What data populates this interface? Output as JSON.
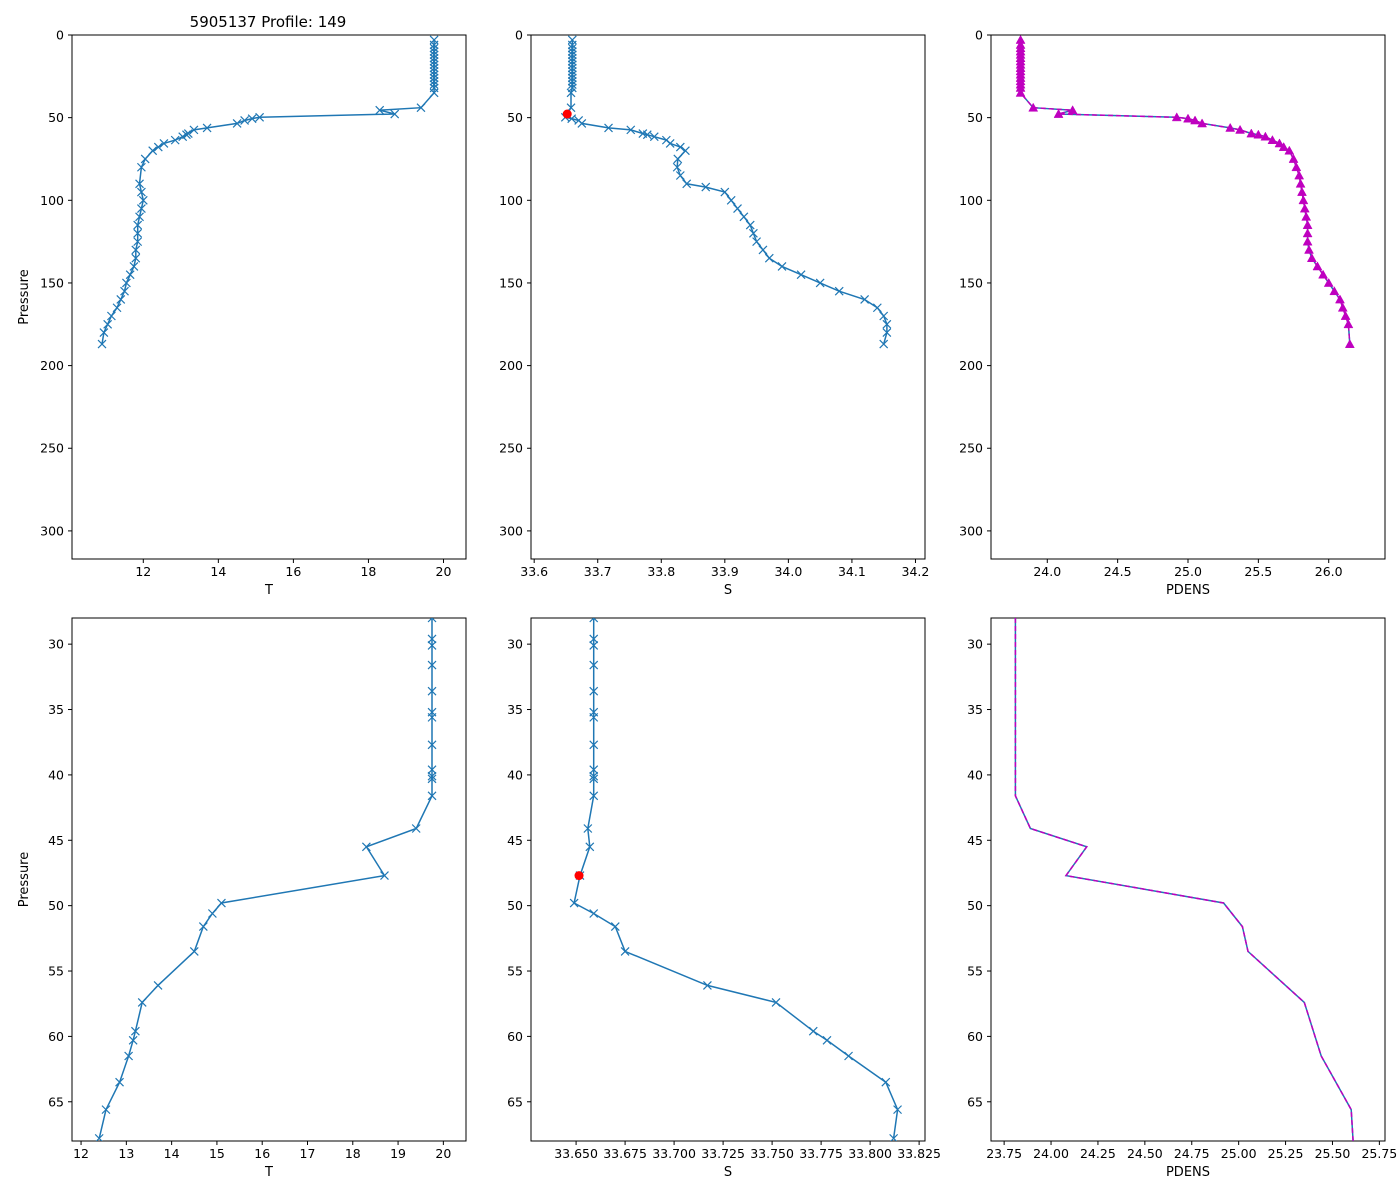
{
  "figure_title": "5905137 Profile: 149",
  "colors": {
    "series": "#1f77b4",
    "density": "#bf00bf",
    "marker_red": "#ff0000",
    "axes": "#000000"
  },
  "chart_data": [
    {
      "id": "top-T",
      "type": "line",
      "title": "5905137 Profile: 149",
      "xlabel": "T",
      "ylabel": "Pressure",
      "xlim": [
        10.1,
        20.6
      ],
      "ylim": [
        317,
        0
      ],
      "yinverted": true,
      "xticks": [
        12,
        14,
        16,
        18,
        20
      ],
      "yticks": [
        0,
        50,
        100,
        150,
        200,
        250,
        300
      ],
      "series": [
        {
          "name": "T",
          "marker": "x",
          "x": [
            19.75,
            19.75,
            19.75,
            19.75,
            19.75,
            19.75,
            19.75,
            19.75,
            19.75,
            19.75,
            19.75,
            19.75,
            19.75,
            19.75,
            19.75,
            19.75,
            19.4,
            18.3,
            18.7,
            15.1,
            14.9,
            14.7,
            14.5,
            13.7,
            13.35,
            13.2,
            13.15,
            13.05,
            12.85,
            12.55,
            12.4,
            12.25,
            12.05,
            11.95,
            11.9,
            11.95,
            12.0,
            11.95,
            11.9,
            11.85,
            11.85,
            11.85,
            11.8,
            11.8,
            11.75,
            11.65,
            11.55,
            11.5,
            11.4,
            11.3,
            11.15,
            11.05,
            10.95,
            10.9
          ],
          "y": [
            3,
            6,
            8,
            10,
            12,
            14,
            16,
            18,
            20,
            22,
            24,
            26,
            28,
            30,
            32,
            35,
            44,
            45.5,
            47.8,
            49.8,
            50.6,
            51.7,
            53.5,
            56.2,
            57.4,
            59.6,
            60.3,
            61.5,
            63.6,
            65.6,
            67.8,
            70,
            75,
            80,
            90,
            95,
            100,
            105,
            110,
            115,
            120,
            125,
            130,
            135,
            140,
            145,
            150,
            155,
            160,
            165,
            170,
            175,
            180,
            187
          ]
        }
      ]
    },
    {
      "id": "top-S",
      "type": "line",
      "xlabel": "S",
      "ylabel": "",
      "xlim": [
        33.595,
        34.215
      ],
      "ylim": [
        317,
        0
      ],
      "yinverted": true,
      "xticks": [
        33.6,
        33.7,
        33.8,
        33.9,
        34.0,
        34.1,
        34.2
      ],
      "yticks": [
        0,
        50,
        100,
        150,
        200,
        250,
        300
      ],
      "series": [
        {
          "name": "S",
          "marker": "x",
          "x": [
            33.66,
            33.66,
            33.66,
            33.66,
            33.66,
            33.66,
            33.66,
            33.66,
            33.66,
            33.66,
            33.66,
            33.66,
            33.66,
            33.66,
            33.66,
            33.658,
            33.658,
            33.649,
            33.659,
            33.67,
            33.675,
            33.717,
            33.752,
            33.771,
            33.778,
            33.789,
            33.808,
            33.814,
            33.83,
            33.838,
            33.826,
            33.825,
            33.83,
            33.84,
            33.87,
            33.9,
            33.91,
            33.92,
            33.93,
            33.94,
            33.945,
            33.95,
            33.96,
            33.97,
            33.99,
            34.02,
            34.05,
            34.08,
            34.12,
            34.14,
            34.15,
            34.155,
            34.155,
            34.15
          ],
          "y": [
            3,
            6,
            8,
            10,
            12,
            14,
            16,
            18,
            20,
            22,
            24,
            26,
            28,
            30,
            32,
            35,
            44,
            49.8,
            50.6,
            51.7,
            53.5,
            56.2,
            57.4,
            59.6,
            60.3,
            61.5,
            63.6,
            65.6,
            67.8,
            70,
            75,
            80,
            85,
            90,
            92,
            95,
            100,
            105,
            110,
            115,
            120,
            125,
            130,
            135,
            140,
            145,
            150,
            155,
            160,
            165,
            170,
            175,
            180,
            187
          ]
        }
      ],
      "highlight_point": {
        "x": 33.652,
        "y": 47.8,
        "color": "red"
      }
    },
    {
      "id": "top-PDENS",
      "type": "line",
      "xlabel": "PDENS",
      "ylabel": "",
      "xlim": [
        23.6,
        26.4
      ],
      "ylim": [
        317,
        0
      ],
      "yinverted": true,
      "xticks": [
        24.0,
        24.5,
        25.0,
        25.5,
        26.0
      ],
      "yticks": [
        0,
        50,
        100,
        150,
        200,
        250,
        300
      ],
      "series": [
        {
          "name": "PDENS",
          "marker": "triangle",
          "dashed_overlay": true,
          "x": [
            23.81,
            23.81,
            23.81,
            23.81,
            23.81,
            23.81,
            23.81,
            23.81,
            23.81,
            23.81,
            23.81,
            23.81,
            23.81,
            23.81,
            23.81,
            23.81,
            23.9,
            24.18,
            24.08,
            24.92,
            25.0,
            25.05,
            25.1,
            25.3,
            25.37,
            25.45,
            25.5,
            25.55,
            25.6,
            25.65,
            25.68,
            25.72,
            25.75,
            25.77,
            25.79,
            25.8,
            25.81,
            25.82,
            25.83,
            25.84,
            25.85,
            25.85,
            25.85,
            25.86,
            25.88,
            25.92,
            25.96,
            26.0,
            26.04,
            26.08,
            26.1,
            26.12,
            26.14,
            26.15
          ],
          "y": [
            3,
            6,
            8,
            10,
            12,
            14,
            16,
            18,
            20,
            22,
            24,
            26,
            28,
            30,
            32,
            35,
            44,
            45.5,
            47.8,
            49.8,
            50.6,
            51.7,
            53.5,
            56.2,
            57.4,
            59.6,
            60.3,
            61.5,
            63.6,
            65.6,
            67.8,
            70,
            75,
            80,
            85,
            90,
            95,
            100,
            105,
            110,
            115,
            120,
            125,
            130,
            135,
            140,
            145,
            150,
            155,
            160,
            165,
            170,
            175,
            187
          ]
        }
      ]
    },
    {
      "id": "bottom-T",
      "type": "line",
      "xlabel": "T",
      "ylabel": "Pressure",
      "xlim": [
        11.8,
        20.5
      ],
      "ylim": [
        68,
        28
      ],
      "yinverted": true,
      "xticks": [
        12,
        13,
        14,
        15,
        16,
        17,
        18,
        19,
        20
      ],
      "yticks": [
        30,
        35,
        40,
        45,
        50,
        55,
        60,
        65
      ],
      "series": [
        {
          "name": "T",
          "marker": "x",
          "x": [
            19.75,
            19.75,
            19.75,
            19.75,
            19.75,
            19.75,
            19.75,
            19.75,
            19.75,
            19.75,
            19.75,
            19.75,
            19.4,
            18.3,
            18.7,
            15.1,
            14.9,
            14.7,
            14.5,
            13.7,
            13.35,
            13.2,
            13.15,
            13.05,
            12.85,
            12.55,
            12.4
          ],
          "y": [
            28,
            29.6,
            30.1,
            31.6,
            33.6,
            35.2,
            35.6,
            37.7,
            39.6,
            40.1,
            40.3,
            41.6,
            44.1,
            45.5,
            47.7,
            49.8,
            50.6,
            51.6,
            53.5,
            56.1,
            57.4,
            59.6,
            60.3,
            61.5,
            63.5,
            65.6,
            67.8
          ]
        }
      ]
    },
    {
      "id": "bottom-S",
      "type": "line",
      "xlabel": "S",
      "ylabel": "",
      "xlim": [
        33.627,
        33.828
      ],
      "ylim": [
        68,
        28
      ],
      "yinverted": true,
      "xticks": [
        33.65,
        33.675,
        33.7,
        33.725,
        33.75,
        33.775,
        33.8,
        33.825
      ],
      "yticks": [
        30,
        35,
        40,
        45,
        50,
        55,
        60,
        65
      ],
      "series": [
        {
          "name": "S",
          "marker": "x",
          "x": [
            33.659,
            33.659,
            33.659,
            33.659,
            33.659,
            33.659,
            33.659,
            33.659,
            33.659,
            33.659,
            33.659,
            33.659,
            33.656,
            33.657,
            33.652,
            33.649,
            33.659,
            33.67,
            33.675,
            33.717,
            33.752,
            33.771,
            33.778,
            33.789,
            33.808,
            33.814,
            33.812
          ],
          "y": [
            28,
            29.6,
            30.1,
            31.6,
            33.6,
            35.2,
            35.6,
            37.7,
            39.6,
            40.1,
            40.3,
            41.6,
            44.1,
            45.5,
            47.7,
            49.8,
            50.6,
            51.6,
            53.5,
            56.1,
            57.4,
            59.6,
            60.3,
            61.5,
            63.5,
            65.6,
            67.8
          ]
        }
      ],
      "highlight_point": {
        "x": 33.6515,
        "y": 47.7,
        "color": "red"
      }
    },
    {
      "id": "bottom-PDENS",
      "type": "line",
      "xlabel": "PDENS",
      "ylabel": "",
      "xlim": [
        23.68,
        25.78
      ],
      "ylim": [
        68,
        28
      ],
      "yinverted": true,
      "xticks": [
        23.75,
        24.0,
        24.25,
        24.5,
        24.75,
        25.0,
        25.25,
        25.5,
        25.75
      ],
      "yticks": [
        30,
        35,
        40,
        45,
        50,
        55,
        60,
        65
      ],
      "series": [
        {
          "name": "PDENS",
          "marker": "none",
          "dashed_overlay": true,
          "x": [
            23.81,
            23.81,
            23.81,
            23.89,
            24.19,
            24.08,
            24.92,
            25.02,
            25.05,
            25.35,
            25.44,
            25.6,
            25.61
          ],
          "y": [
            28,
            35,
            41.6,
            44.1,
            45.5,
            47.7,
            49.8,
            51.6,
            53.5,
            57.4,
            61.5,
            65.6,
            68
          ]
        }
      ]
    }
  ]
}
